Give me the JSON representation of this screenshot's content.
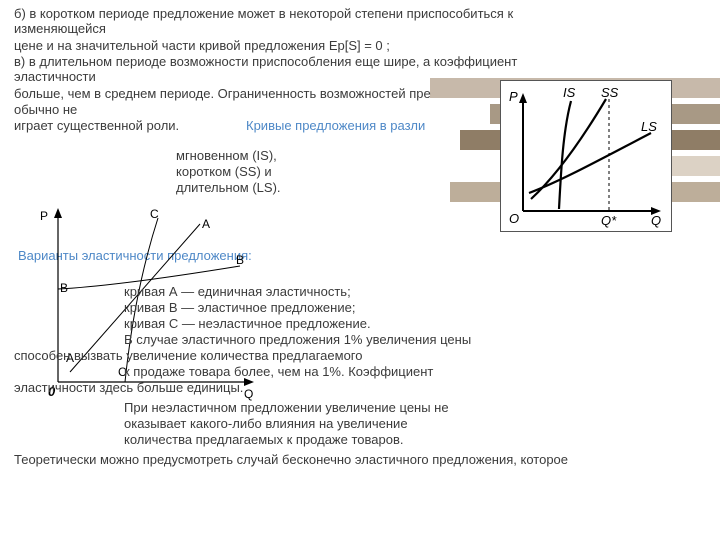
{
  "text": {
    "p1a": "б) в коротком периоде предложение может в некоторой степени приспособиться к изменяющейся",
    "p1b": "цене и на значительной части кривой предложения Ep[S] = 0 ;",
    "p1c": "в) в длительном периоде возможности приспособления еще шире, а коэффициент эластичности",
    "p1d": "больше, чем в среднем периоде. Ограниченность возможностей пре",
    "p1e": "обычно не",
    "p1f": "играет существенной роли.",
    "title1": "Кривые предложения в разли",
    "l1": "мгновенном (IS),",
    "l2": "коротком (SS) и",
    "l3": "длительном (LS).",
    "title2": "Варианты эластичности предложения:",
    "cA": "кривая А — единичная эластичность;",
    "cB": "кривая В — эластичное предложение;",
    "cC": "кривая С — неэластичное предложение.",
    "d1": "В случае эластичного предложения 1% увеличения цены",
    "d2": "способен вызвать увеличение количества предлагаемого",
    "d3": "к продаже товара более, чем на 1%. Коэффициент",
    "d4": "эластичности здесь больше единицы.",
    "e1": "При неэластичном предложении увеличение цены не",
    "e2": "оказывает какого-либо влияния на увеличение",
    "e3": "количества предлагаемых к продаже товаров.",
    "f1": "Теоретически можно предусмотреть случай бесконечно эластичного предложения, которое"
  },
  "bars": {
    "colors": [
      "#c7b9aa",
      "#a89985",
      "#8f7d66",
      "#dcd2c5",
      "#bdae9a"
    ],
    "widths": [
      290,
      230,
      260,
      190,
      270
    ]
  },
  "diagram_right": {
    "box_bg": "#ffffff",
    "stroke": "#000000",
    "labels": {
      "IS": "IS",
      "SS": "SS",
      "LS": "LS",
      "P": "P",
      "O": "O",
      "Q": "Q",
      "Qs": "Q*"
    }
  },
  "diagram_left": {
    "P": "P",
    "C": "C",
    "A": "A",
    "B": "B",
    "zero": "0",
    "Q": "Q"
  }
}
